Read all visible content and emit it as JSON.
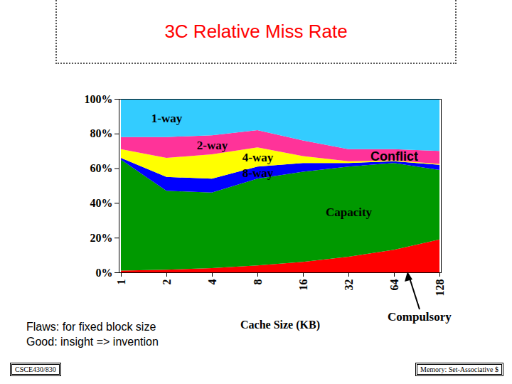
{
  "chart_data": {
    "type": "area",
    "title": "3C Relative Miss Rate",
    "stacked": true,
    "x_label": "Cache Size (KB)",
    "categories": [
      "1",
      "2",
      "4",
      "8",
      "16",
      "32",
      "64",
      "128"
    ],
    "series": [
      {
        "name": "Compulsory",
        "color": "#ff0000",
        "values": [
          1,
          1.5,
          2.5,
          4,
          6,
          9,
          13,
          19
        ]
      },
      {
        "name": "Capacity",
        "color": "#009900",
        "values": [
          64,
          45.5,
          43.5,
          50,
          52,
          52,
          50,
          40
        ]
      },
      {
        "name": "8-way",
        "color": "#0000ff",
        "values": [
          1,
          8,
          8,
          7,
          5,
          2,
          1,
          3
        ]
      },
      {
        "name": "4-way",
        "color": "#ffff00",
        "values": [
          5,
          11,
          14,
          11,
          4,
          1,
          0.5,
          0.5
        ]
      },
      {
        "name": "2-way",
        "color": "#ff3399",
        "values": [
          7,
          12,
          11,
          10,
          9,
          7,
          6.5,
          7.5
        ]
      },
      {
        "name": "1-way",
        "color": "#33ccff",
        "values": [
          22,
          22,
          21,
          18,
          24,
          29,
          29,
          30
        ]
      }
    ],
    "annotations": [
      "Conflict"
    ],
    "ylim": [
      0,
      100
    ],
    "yticks": [
      {
        "value": 0,
        "label": "0%"
      },
      {
        "value": 20,
        "label": "20%"
      },
      {
        "value": 40,
        "label": "40%"
      },
      {
        "value": 60,
        "label": "60%"
      },
      {
        "value": 80,
        "label": "80%"
      },
      {
        "value": 100,
        "label": "100%"
      }
    ],
    "grid": false
  },
  "slide": {
    "notes": [
      "Flaws: for fixed block size",
      "Good: insight => invention"
    ],
    "footer_left": "CSCE430/830",
    "footer_right": "Memory: Set-Associative $"
  }
}
